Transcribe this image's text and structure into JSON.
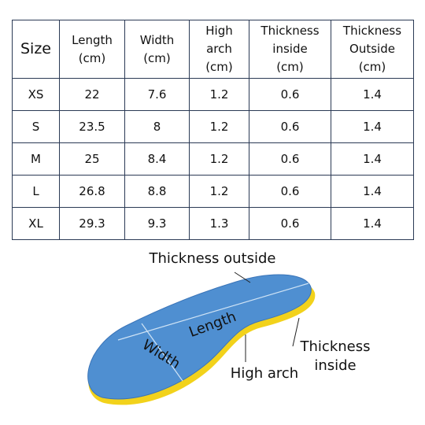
{
  "table": {
    "header": [
      [
        "Size"
      ],
      [
        "Length",
        "(cm)"
      ],
      [
        "Width",
        "(cm)"
      ],
      [
        "High",
        "arch",
        "(cm)"
      ],
      [
        "Thickness",
        "inside",
        "(cm)"
      ],
      [
        "Thickness",
        "Outside",
        "(cm)"
      ]
    ],
    "rows": [
      [
        "XS",
        "22",
        "7.6",
        "1.2",
        "0.6",
        "1.4"
      ],
      [
        "S",
        "23.5",
        "8",
        "1.2",
        "0.6",
        "1.4"
      ],
      [
        "M",
        "25",
        "8.4",
        "1.2",
        "0.6",
        "1.4"
      ],
      [
        "L",
        "26.8",
        "8.8",
        "1.2",
        "0.6",
        "1.4"
      ],
      [
        "XL",
        "29.3",
        "9.3",
        "1.3",
        "0.6",
        "1.4"
      ]
    ]
  },
  "diagram": {
    "thickness_outside": "Thickness outside",
    "length": "Length",
    "width": "Width",
    "thickness_inside": [
      "Thickness",
      "inside"
    ],
    "high_arch": "High arch"
  }
}
